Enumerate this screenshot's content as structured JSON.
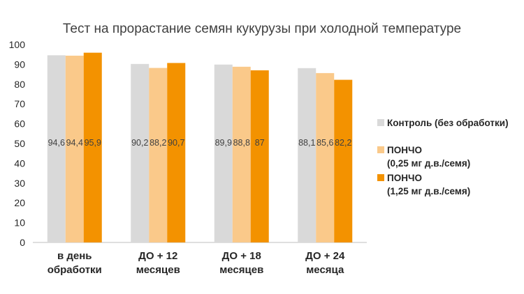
{
  "chart_data": {
    "type": "bar",
    "title": "Тест на прорастание семян кукурузы при холодной температуре",
    "xlabel": "",
    "ylabel": "",
    "ylim": [
      0,
      100
    ],
    "yticks": [
      0,
      10,
      20,
      30,
      40,
      50,
      60,
      70,
      80,
      90,
      100
    ],
    "grid": false,
    "legend_position": "right",
    "categories": [
      [
        "в день",
        "обработки"
      ],
      [
        "ДО + 12",
        "месяцев"
      ],
      [
        "ДО + 18",
        "месяцев"
      ],
      [
        "ДО + 24",
        "месяца"
      ]
    ],
    "series": [
      {
        "name": "Контроль (без обработки)",
        "name_lines": [
          "Контроль (без обработки)"
        ],
        "color": "#d9d9d9",
        "values": [
          94.6,
          90.2,
          89.9,
          88.1
        ],
        "labels": [
          "94,6",
          "90,2",
          "89,9",
          "88,1"
        ]
      },
      {
        "name": "ПОНЧО (0,25 мг д.в./семя)",
        "name_lines": [
          "ПОНЧО",
          "(0,25 мг д.в./семя)"
        ],
        "color": "#fac98a",
        "values": [
          94.4,
          88.2,
          88.8,
          85.6
        ],
        "labels": [
          "94,4",
          "88,2",
          "88,8",
          "85,6"
        ]
      },
      {
        "name": "ПОНЧО (1,25 мг д.в./семя)",
        "name_lines": [
          "ПОНЧО",
          "(1,25 мг д.в./семя)"
        ],
        "color": "#f39200",
        "values": [
          95.9,
          90.7,
          87,
          82.2
        ],
        "labels": [
          "95,9",
          "90,7",
          "87",
          "82,2"
        ]
      }
    ]
  }
}
